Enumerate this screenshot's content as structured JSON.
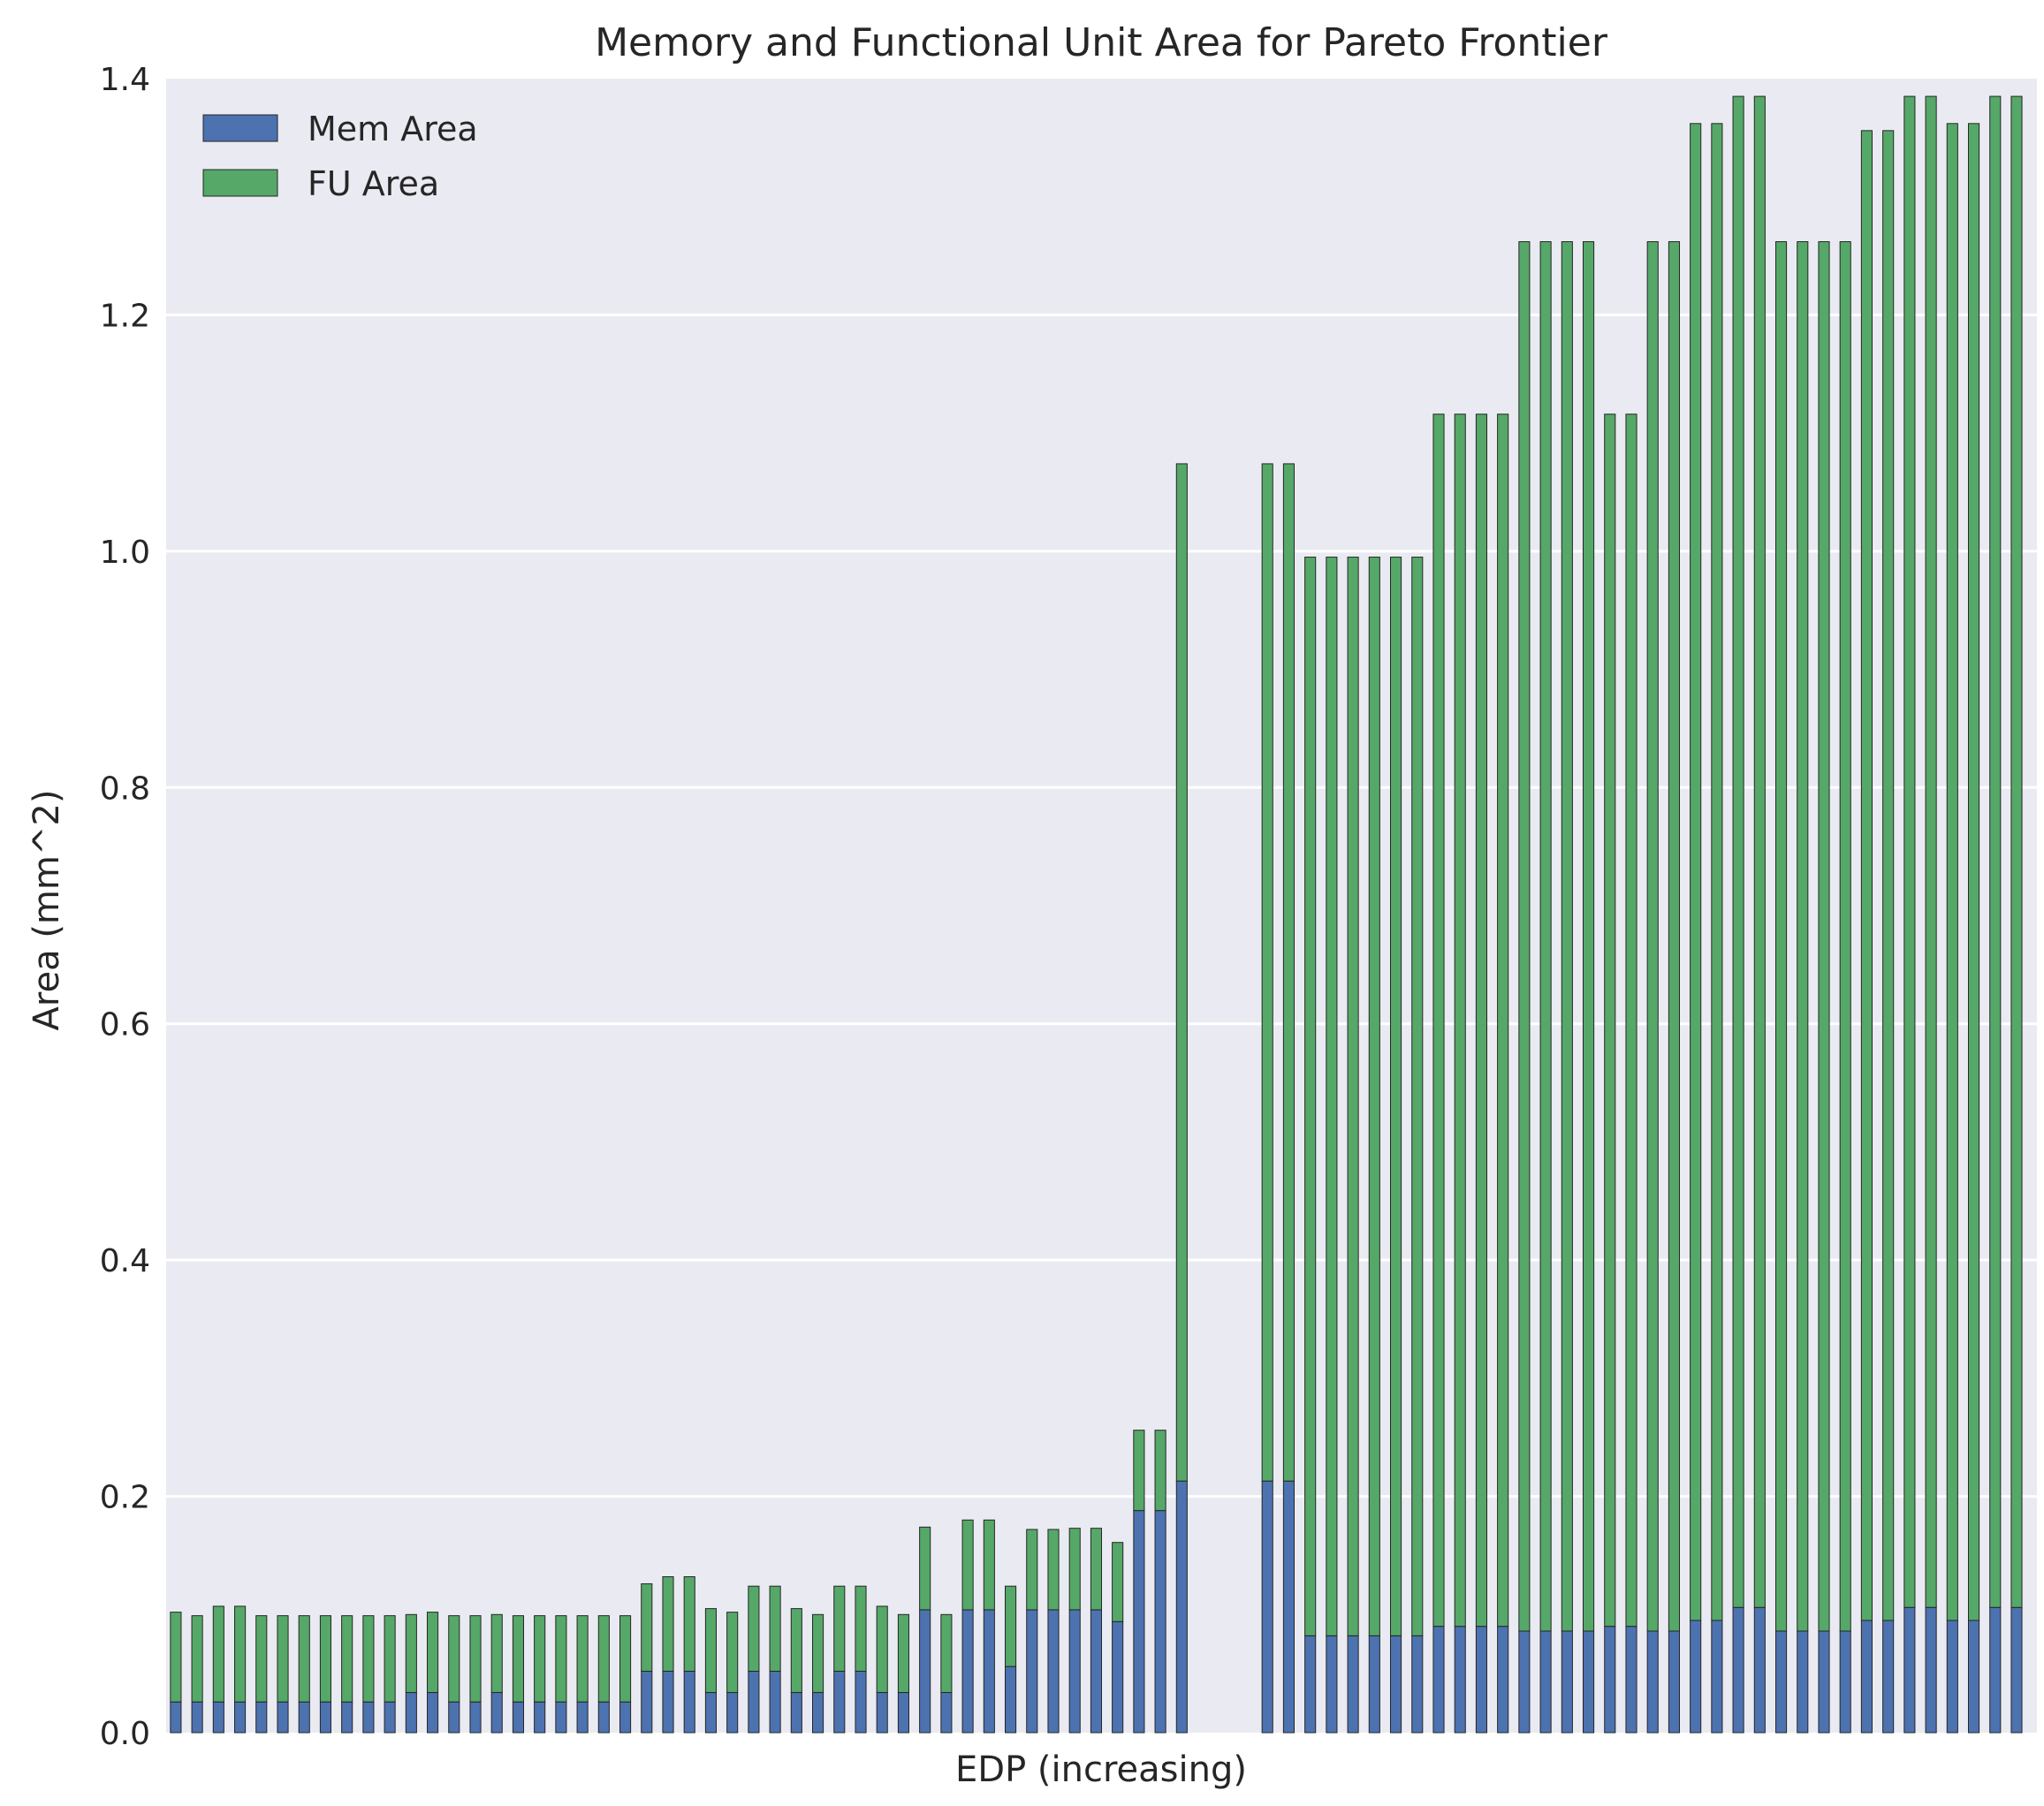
{
  "chart_data": {
    "type": "bar",
    "stacked": true,
    "title": "Memory and Functional Unit Area for Pareto Frontier",
    "xlabel": "EDP (increasing)",
    "ylabel": "Area (mm^2)",
    "ylim": [
      0,
      1.4
    ],
    "yticks": [
      "0.0",
      "0.2",
      "0.4",
      "0.6",
      "0.8",
      "1.0",
      "1.2",
      "1.4"
    ],
    "ytick_values": [
      0,
      0.2,
      0.4,
      0.6,
      0.8,
      1.0,
      1.2,
      1.4
    ],
    "grid": true,
    "legend": "top-left",
    "colors": {
      "background": "#eaeaf2",
      "grid": "#ffffff",
      "mem": "#4c72b0",
      "fu": "#55a868",
      "edge": "#262626"
    },
    "series": [
      {
        "name": "Mem Area",
        "color": "#4c72b0",
        "values": [
          0.026,
          0.026,
          0.026,
          0.026,
          0.026,
          0.026,
          0.026,
          0.026,
          0.026,
          0.026,
          0.026,
          0.034,
          0.034,
          0.026,
          0.026,
          0.034,
          0.026,
          0.026,
          0.026,
          0.026,
          0.026,
          0.026,
          0.052,
          0.052,
          0.052,
          0.034,
          0.034,
          0.052,
          0.052,
          0.034,
          0.034,
          0.052,
          0.052,
          0.034,
          0.034,
          0.104,
          0.034,
          0.104,
          0.104,
          0.056,
          0.104,
          0.104,
          0.104,
          0.104,
          0.094,
          0.188,
          0.188,
          0.213,
          0,
          0,
          0,
          0.213,
          0.213,
          0.082,
          0.082,
          0.082,
          0.082,
          0.082,
          0.082,
          0.09,
          0.09,
          0.09,
          0.09,
          0.086,
          0.086,
          0.086,
          0.086,
          0.09,
          0.09,
          0.086,
          0.086,
          0.095,
          0.095,
          0.106,
          0.106,
          0.086,
          0.086,
          0.086,
          0.086,
          0.095,
          0.095,
          0.106,
          0.106,
          0.095,
          0.095,
          0.106,
          0.106
        ]
      },
      {
        "name": "FU Area",
        "color": "#55a868",
        "values": [
          0.076,
          0.073,
          0.081,
          0.081,
          0.073,
          0.073,
          0.073,
          0.073,
          0.073,
          0.073,
          0.073,
          0.066,
          0.068,
          0.073,
          0.073,
          0.066,
          0.073,
          0.073,
          0.073,
          0.073,
          0.073,
          0.073,
          0.074,
          0.08,
          0.08,
          0.071,
          0.068,
          0.072,
          0.072,
          0.071,
          0.066,
          0.072,
          0.072,
          0.073,
          0.066,
          0.07,
          0.066,
          0.076,
          0.076,
          0.068,
          0.068,
          0.068,
          0.069,
          0.069,
          0.067,
          0.068,
          0.068,
          0.861,
          0,
          0,
          0,
          0.861,
          0.861,
          0.913,
          0.913,
          0.913,
          0.913,
          0.913,
          0.913,
          1.026,
          1.026,
          1.026,
          1.026,
          1.176,
          1.176,
          1.176,
          1.176,
          1.026,
          1.026,
          1.176,
          1.176,
          1.267,
          1.267,
          1.279,
          1.279,
          1.176,
          1.176,
          1.176,
          1.176,
          1.261,
          1.261,
          1.279,
          1.279,
          1.267,
          1.267,
          1.279,
          1.279
        ]
      }
    ]
  }
}
